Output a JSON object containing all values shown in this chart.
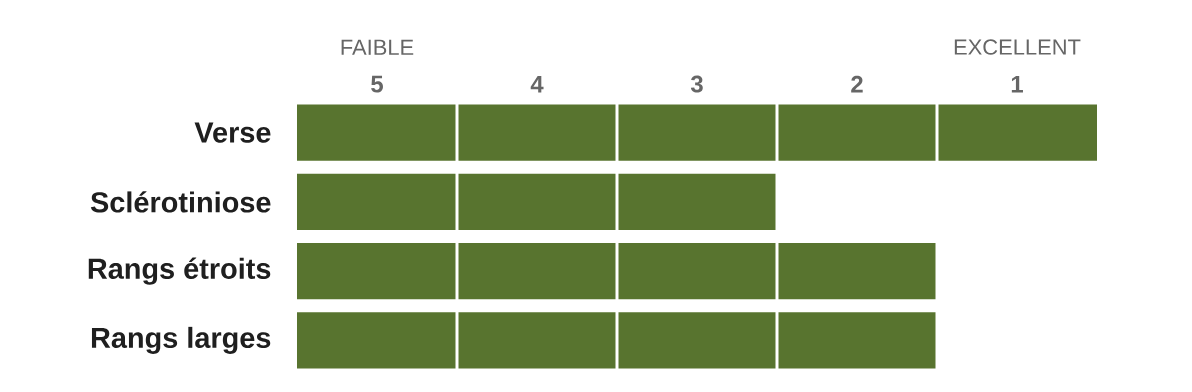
{
  "chart_data": {
    "type": "bar",
    "orientation": "horizontal",
    "categories": [
      "Verse",
      "Sclérotiniose",
      "Rangs étroits",
      "Rangs larges"
    ],
    "base": [
      5.5,
      5.5,
      5.5,
      5.5
    ],
    "values": [
      -5,
      -3,
      -4,
      -4
    ],
    "color": "#58742f",
    "xlim": [
      5.5,
      0.5
    ],
    "xticks": [
      5,
      4,
      3,
      2,
      1
    ],
    "annotations": [
      "FAIBLE",
      "EXCELLENT"
    ]
  }
}
